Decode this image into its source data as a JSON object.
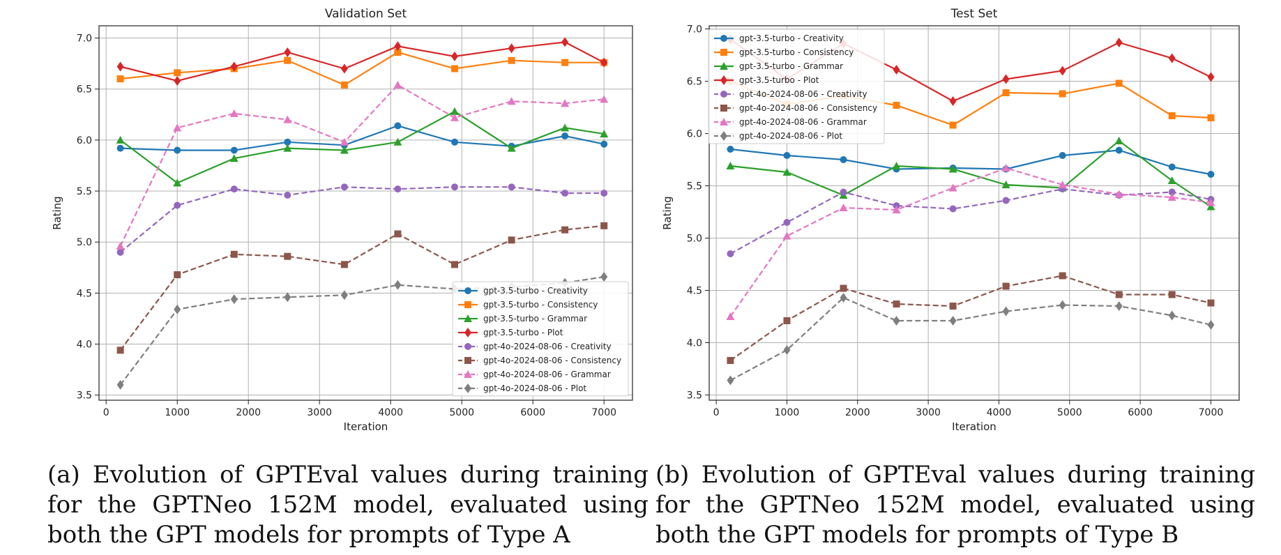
{
  "colors": {
    "gpt35_creativity": "#1f77b4",
    "gpt35_consistency": "#ff7f0e",
    "gpt35_grammar": "#2ca02c",
    "gpt35_plot": "#d62728",
    "gpt4o_creativity": "#9467bd",
    "gpt4o_consistency": "#8c564b",
    "gpt4o_grammar": "#e377c2",
    "gpt4o_plot": "#7f7f7f"
  },
  "captions": {
    "a": "(a) Evolution of GPTEval values during training for the GPTNeo 152M model, evaluated using both the GPT models for prompts of Type A",
    "b": "(b) Evolution of GPTEval values during training for the GPTNeo 152M model, evaluated using both the GPT models for prompts of Type B"
  },
  "chart_data": [
    {
      "type": "line",
      "title": "Validation Set",
      "xlabel": "Iteration",
      "ylabel": "Rating",
      "xlim": [
        -100,
        7400
      ],
      "ylim": [
        3.45,
        7.12
      ],
      "xticks": [
        0,
        1000,
        2000,
        3000,
        4000,
        5000,
        6000,
        7000
      ],
      "yticks": [
        3.5,
        4.0,
        4.5,
        5.0,
        5.5,
        6.0,
        6.5,
        7.0
      ],
      "grid": true,
      "legend_position": "lower-right",
      "x": [
        200,
        1000,
        1800,
        2550,
        3350,
        4100,
        4900,
        5700,
        6450,
        7000
      ],
      "series": [
        {
          "name": "gpt-3.5-turbo - Creativity",
          "values": [
            5.92,
            5.9,
            5.9,
            5.98,
            5.95,
            6.14,
            5.98,
            5.94,
            6.04,
            5.96
          ]
        },
        {
          "name": "gpt-3.5-turbo - Consistency",
          "values": [
            6.6,
            6.66,
            6.7,
            6.78,
            6.54,
            6.86,
            6.7,
            6.78,
            6.76,
            6.76
          ]
        },
        {
          "name": "gpt-3.5-turbo - Grammar",
          "values": [
            6.0,
            5.58,
            5.82,
            5.92,
            5.9,
            5.98,
            6.28,
            5.92,
            6.12,
            6.06
          ]
        },
        {
          "name": "gpt-3.5-turbo - Plot",
          "values": [
            6.72,
            6.58,
            6.72,
            6.86,
            6.7,
            6.92,
            6.82,
            6.9,
            6.96,
            6.76
          ]
        },
        {
          "name": "gpt-4o-2024-08-06 - Creativity",
          "values": [
            4.9,
            5.36,
            5.52,
            5.46,
            5.54,
            5.52,
            5.54,
            5.54,
            5.48,
            5.48
          ]
        },
        {
          "name": "gpt-4o-2024-08-06 - Consistency",
          "values": [
            3.94,
            4.68,
            4.88,
            4.86,
            4.78,
            5.08,
            4.78,
            5.02,
            5.12,
            5.16
          ]
        },
        {
          "name": "gpt-4o-2024-08-06 - Grammar",
          "values": [
            4.96,
            6.12,
            6.26,
            6.2,
            5.98,
            6.54,
            6.22,
            6.38,
            6.36,
            6.4
          ]
        },
        {
          "name": "gpt-4o-2024-08-06 - Plot",
          "values": [
            3.6,
            4.34,
            4.44,
            4.46,
            4.48,
            4.58,
            4.54,
            4.56,
            4.6,
            4.66
          ]
        }
      ]
    },
    {
      "type": "line",
      "title": "Test Set",
      "xlabel": "Iteration",
      "ylabel": "Rating",
      "xlim": [
        -100,
        7400
      ],
      "ylim": [
        3.45,
        7.03
      ],
      "xticks": [
        0,
        1000,
        2000,
        3000,
        4000,
        5000,
        6000,
        7000
      ],
      "yticks": [
        3.5,
        4.0,
        4.5,
        5.0,
        5.5,
        6.0,
        6.5,
        7.0
      ],
      "grid": true,
      "legend_position": "upper-left",
      "x": [
        200,
        1000,
        1800,
        2550,
        3350,
        4100,
        4900,
        5700,
        6450,
        7000
      ],
      "series": [
        {
          "name": "gpt-3.5-turbo - Creativity",
          "values": [
            5.85,
            5.79,
            5.75,
            5.66,
            5.67,
            5.66,
            5.79,
            5.84,
            5.68,
            5.61
          ]
        },
        {
          "name": "gpt-3.5-turbo - Consistency",
          "values": [
            6.5,
            6.28,
            6.36,
            6.27,
            6.08,
            6.39,
            6.38,
            6.48,
            6.17,
            6.15
          ]
        },
        {
          "name": "gpt-3.5-turbo - Grammar",
          "values": [
            5.69,
            5.63,
            5.41,
            5.69,
            5.66,
            5.51,
            5.48,
            5.93,
            5.55,
            5.3
          ]
        },
        {
          "name": "gpt-3.5-turbo - Plot",
          "values": [
            6.9,
            6.52,
            6.86,
            6.61,
            6.31,
            6.52,
            6.6,
            6.87,
            6.72,
            6.54
          ]
        },
        {
          "name": "gpt-4o-2024-08-06 - Creativity",
          "values": [
            4.85,
            5.15,
            5.44,
            5.31,
            5.28,
            5.36,
            5.47,
            5.41,
            5.44,
            5.37
          ]
        },
        {
          "name": "gpt-4o-2024-08-06 - Consistency",
          "values": [
            3.83,
            4.21,
            4.52,
            4.37,
            4.35,
            4.54,
            4.64,
            4.46,
            4.46,
            4.38
          ]
        },
        {
          "name": "gpt-4o-2024-08-06 - Grammar",
          "values": [
            4.25,
            5.02,
            5.29,
            5.27,
            5.48,
            5.67,
            5.51,
            5.42,
            5.39,
            5.34
          ]
        },
        {
          "name": "gpt-4o-2024-08-06 - Plot",
          "values": [
            3.64,
            3.93,
            4.43,
            4.21,
            4.21,
            4.3,
            4.36,
            4.35,
            4.26,
            4.17
          ]
        }
      ]
    }
  ]
}
